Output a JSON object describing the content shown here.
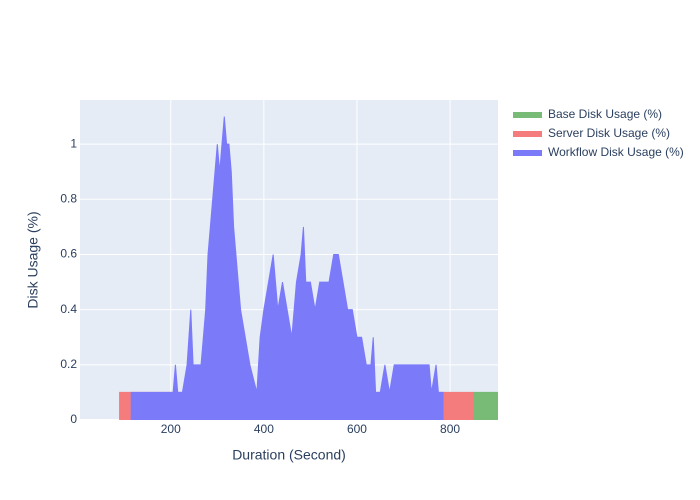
{
  "chart_data": {
    "type": "area",
    "x_label": "Duration (Second)",
    "y_label": "Disk Usage (%)",
    "xlim": [
      5,
      903
    ],
    "ylim": [
      0,
      1.16
    ],
    "xticks": [
      200,
      400,
      600,
      800
    ],
    "yticks": [
      0,
      0.2,
      0.4,
      0.6,
      0.8,
      1
    ],
    "grid": true,
    "legend": "right",
    "series": [
      {
        "name": "Base Disk Usage (%)",
        "color": "#77bb77",
        "x": [
          850,
          903
        ],
        "values": [
          0.1,
          0.1
        ]
      },
      {
        "name": "Server Disk Usage (%)",
        "color": "#f47c7c",
        "x": [
          90,
          850
        ],
        "values": [
          0.1,
          0.1
        ]
      },
      {
        "name": "Workflow Disk Usage (%)",
        "color": "#7b7bfa",
        "x": [
          115,
          205,
          210,
          215,
          225,
          235,
          243,
          248,
          265,
          270,
          275,
          280,
          285,
          290,
          295,
          300,
          305,
          310,
          315,
          320,
          325,
          330,
          335,
          340,
          345,
          350,
          360,
          370,
          385,
          392,
          400,
          410,
          420,
          425,
          430,
          440,
          450,
          460,
          470,
          480,
          485,
          490,
          500,
          510,
          520,
          530,
          540,
          550,
          560,
          570,
          580,
          590,
          600,
          610,
          620,
          630,
          635,
          640,
          650,
          660,
          670,
          680,
          700,
          720,
          740,
          755,
          760,
          770,
          775,
          785
        ],
        "values": [
          0.1,
          0.1,
          0.2,
          0.1,
          0.1,
          0.2,
          0.4,
          0.2,
          0.2,
          0.3,
          0.4,
          0.6,
          0.7,
          0.8,
          0.9,
          1.0,
          0.9,
          1.0,
          1.1,
          1.0,
          1.0,
          0.9,
          0.7,
          0.6,
          0.5,
          0.4,
          0.3,
          0.2,
          0.1,
          0.3,
          0.4,
          0.5,
          0.6,
          0.5,
          0.4,
          0.5,
          0.4,
          0.3,
          0.5,
          0.6,
          0.7,
          0.5,
          0.5,
          0.4,
          0.5,
          0.5,
          0.5,
          0.6,
          0.6,
          0.5,
          0.4,
          0.4,
          0.3,
          0.3,
          0.2,
          0.2,
          0.3,
          0.1,
          0.1,
          0.2,
          0.1,
          0.2,
          0.2,
          0.2,
          0.2,
          0.2,
          0.1,
          0.2,
          0.1,
          0.1
        ]
      }
    ]
  }
}
